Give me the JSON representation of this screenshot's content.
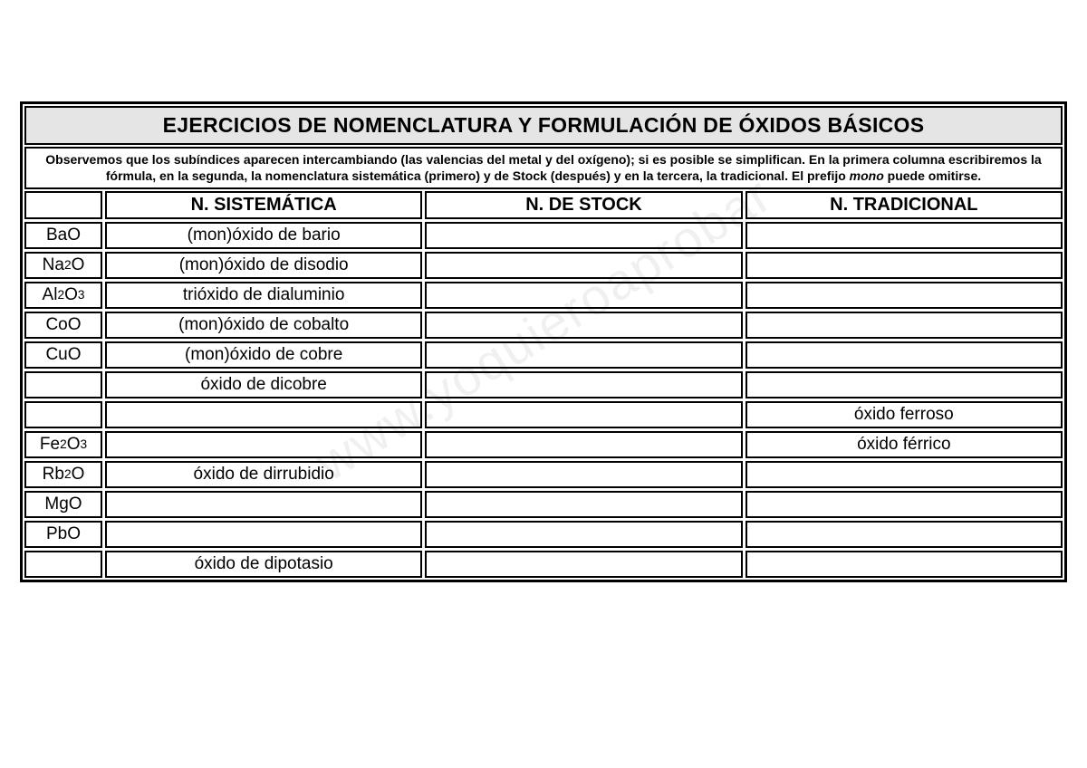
{
  "title": "EJERCICIOS DE NOMENCLATURA Y FORMULACIÓN DE ÓXIDOS BÁSICOS",
  "instructions_pre": "Observemos que los subíndices aparecen intercambiando (las valencias del metal y del oxígeno); si es posible se simplifican. En la primera columna escribiremos la fórmula, en la segunda, la nomenclatura sistemática (primero) y de Stock (después) y en la tercera, la tradicional. El prefijo ",
  "instructions_mono": "mono",
  "instructions_post": " puede omitirse.",
  "headers": {
    "formula": "",
    "sistematica": "N. SISTEMÁTICA",
    "stock": "N. DE STOCK",
    "tradicional": "N. TRADICIONAL"
  },
  "rows": [
    {
      "formula_html": "BaO",
      "sistematica": "(mon)óxido de bario",
      "stock": "",
      "tradicional": ""
    },
    {
      "formula_html": "Na<sub>2</sub>O",
      "sistematica": "(mon)óxido de disodio",
      "stock": "",
      "tradicional": ""
    },
    {
      "formula_html": "Al<sub>2</sub>O<sub>3</sub>",
      "sistematica": "trióxido de dialuminio",
      "stock": "",
      "tradicional": ""
    },
    {
      "formula_html": "CoO",
      "sistematica": "(mon)óxido de cobalto",
      "stock": "",
      "tradicional": ""
    },
    {
      "formula_html": "CuO",
      "sistematica": "(mon)óxido de cobre",
      "stock": "",
      "tradicional": ""
    },
    {
      "formula_html": "",
      "sistematica": "óxido de dicobre",
      "stock": "",
      "tradicional": ""
    },
    {
      "formula_html": "",
      "sistematica": "",
      "stock": "",
      "tradicional": "óxido ferroso"
    },
    {
      "formula_html": "Fe<sub>2</sub>O<sub>3</sub>",
      "sistematica": "",
      "stock": "",
      "tradicional": "óxido férrico"
    },
    {
      "formula_html": "Rb<sub>2</sub>O",
      "sistematica": "óxido de dirrubidio",
      "stock": "",
      "tradicional": ""
    },
    {
      "formula_html": "MgO",
      "sistematica": "",
      "stock": "",
      "tradicional": ""
    },
    {
      "formula_html": "PbO",
      "sistematica": "",
      "stock": "",
      "tradicional": ""
    },
    {
      "formula_html": "",
      "sistematica": "óxido de dipotasio",
      "stock": "",
      "tradicional": ""
    }
  ],
  "watermark": "www.yoquieroaprobar"
}
